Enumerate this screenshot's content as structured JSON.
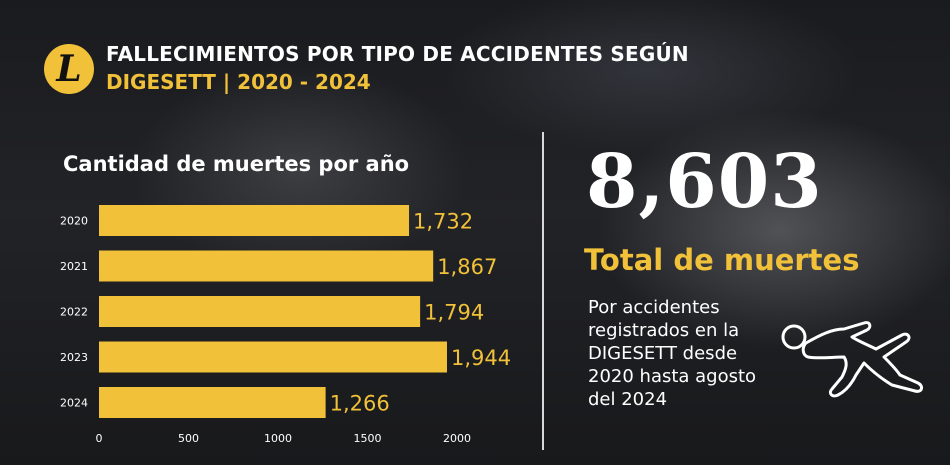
{
  "header": {
    "logo_letter": "L",
    "title_line1": "FALLECIMIENTOS POR TIPO DE ACCIDENTES SEGÚN",
    "title_line2": "DIGESETT | 2020 - 2024"
  },
  "chart_data": {
    "type": "bar",
    "orientation": "horizontal",
    "title": "Cantidad de muertes por año",
    "categories": [
      "2020",
      "2021",
      "2022",
      "2023",
      "2024"
    ],
    "values": [
      1732,
      1867,
      1794,
      1944,
      1266
    ],
    "value_labels": [
      "1,732",
      "1,867",
      "1,794",
      "1,944",
      "1,266"
    ],
    "xlim": [
      0,
      2000
    ],
    "xticks": [
      "0",
      "500",
      "1000",
      "1500",
      "2000"
    ],
    "grid": false,
    "bar_color": "#f0c139"
  },
  "summary": {
    "total": "8,603",
    "total_label": "Total de muertes",
    "description": "Por accidentes registrados en la DIGESETT desde 2020 hasta agosto del 2024",
    "icon": "body-outline-icon"
  },
  "colors": {
    "accent": "#f0c139",
    "text": "#ffffff"
  }
}
